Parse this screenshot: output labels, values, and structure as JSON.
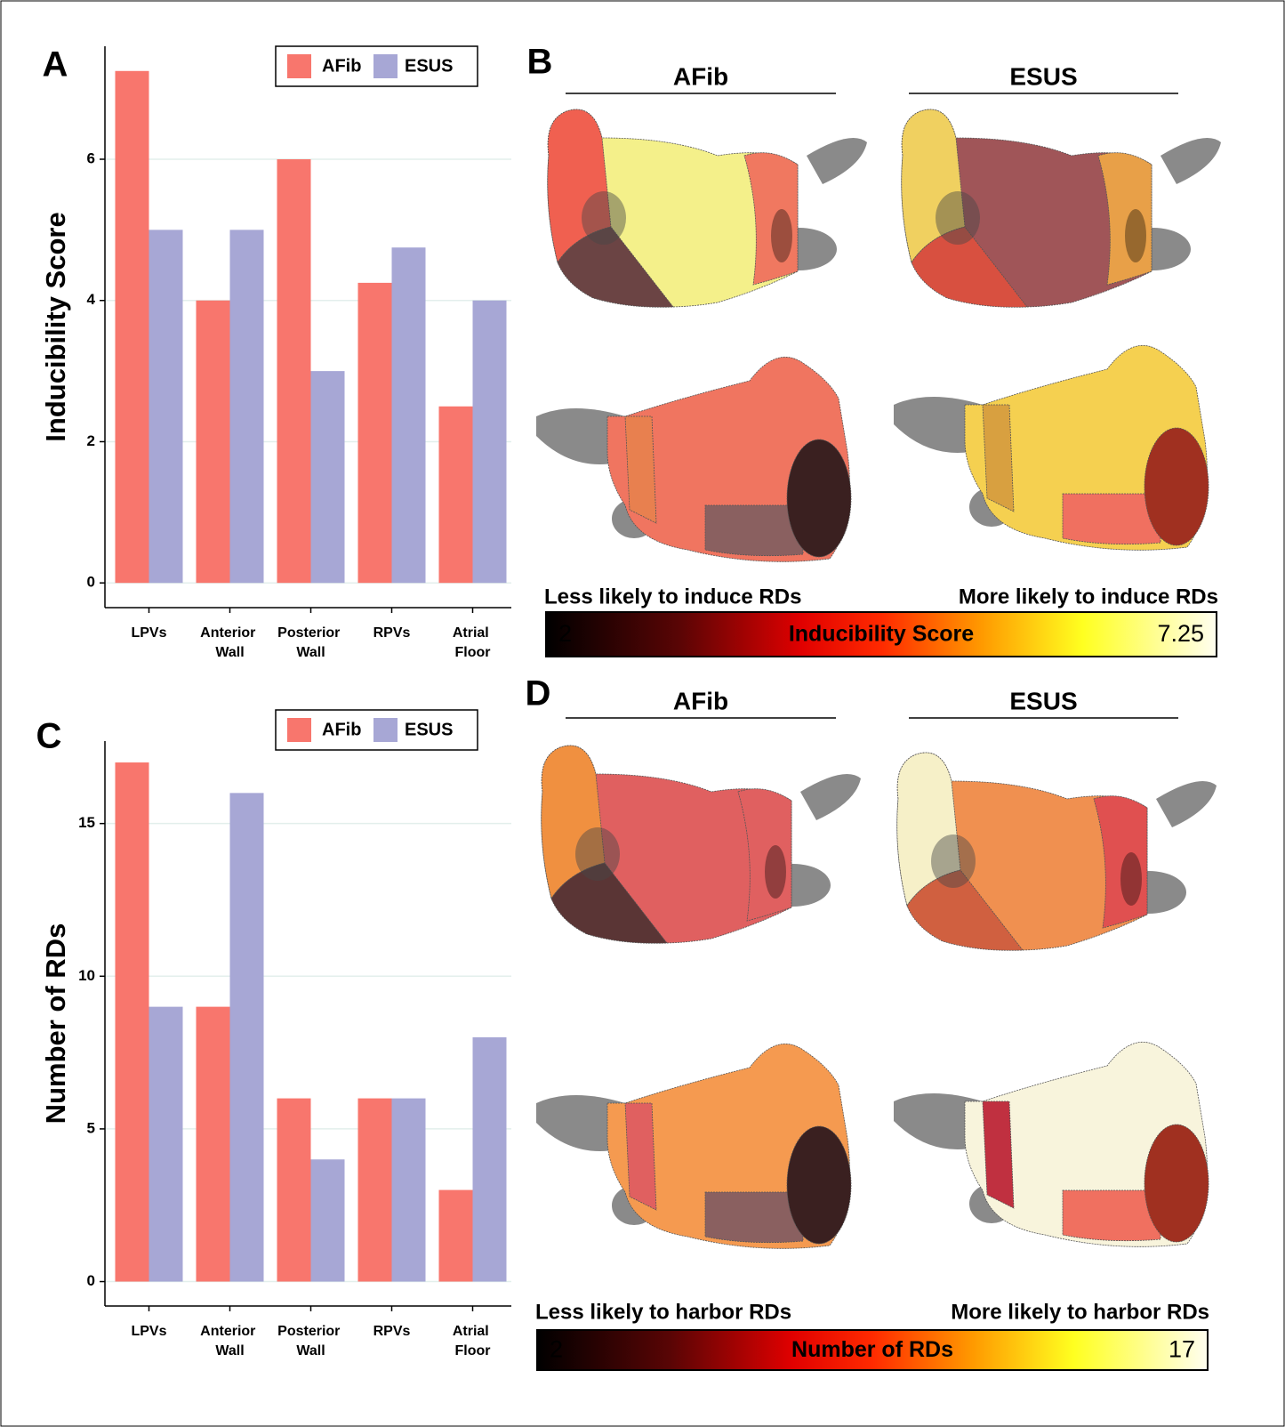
{
  "chart_data": [
    {
      "type": "bar",
      "panel_label": "A",
      "y_label": "Inducibility Score",
      "categories": [
        "LPVs",
        "Anterior Wall",
        "Posterior Wall",
        "RPVs",
        "Atrial Floor"
      ],
      "series": [
        {
          "name": "AFib",
          "color": "#f8766d",
          "values": [
            7.25,
            4,
            6,
            4.25,
            2.5
          ]
        },
        {
          "name": "ESUS",
          "color": "#a7a7d5",
          "values": [
            5,
            5,
            3,
            4.75,
            4
          ]
        }
      ],
      "ylim": [
        -0.35,
        7.6
      ],
      "yticks": [
        0,
        2,
        4,
        6
      ],
      "grid": true,
      "legend": "top-right"
    },
    {
      "type": "bar",
      "panel_label": "C",
      "y_label": "Number of RDs",
      "categories": [
        "LPVs",
        "Anterior Wall",
        "Posterior Wall",
        "RPVs",
        "Atrial Floor"
      ],
      "series": [
        {
          "name": "AFib",
          "color": "#f8766d",
          "values": [
            17,
            9,
            6,
            6,
            3
          ]
        },
        {
          "name": "ESUS",
          "color": "#a7a7d5",
          "values": [
            9,
            16,
            4,
            6,
            8
          ]
        }
      ],
      "ylim": [
        -0.8,
        17.7
      ],
      "yticks": [
        0,
        5,
        10,
        15
      ],
      "grid": true,
      "legend": "top-right"
    }
  ],
  "panels": [
    {
      "label": "B",
      "columns": [
        "AFib",
        "ESUS"
      ],
      "colorbar": {
        "left_caption": "Less likely to induce RDs",
        "right_caption": "More likely to induce RDs",
        "min": 2,
        "max": 7.25,
        "title": "Inducibility Score"
      }
    },
    {
      "label": "D",
      "columns": [
        "AFib",
        "ESUS"
      ],
      "colorbar": {
        "left_caption": "Less likely to harbor RDs",
        "right_caption": "More likely to harbor RDs",
        "min": 2,
        "max": 17,
        "title": "Number of RDs"
      }
    }
  ]
}
